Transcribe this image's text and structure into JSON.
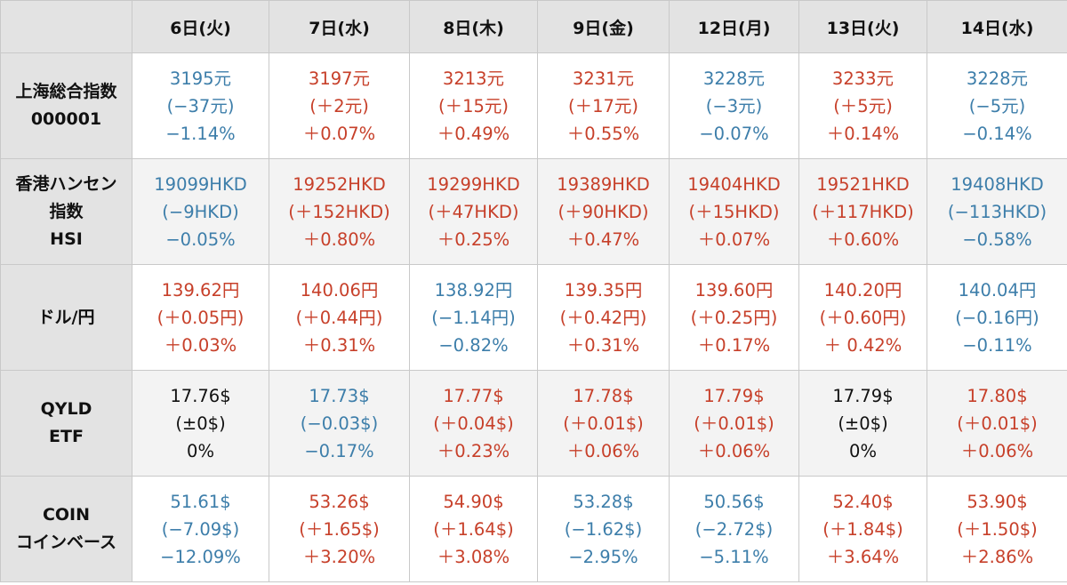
{
  "colors": {
    "up": "#c7402a",
    "down": "#3d7eaa",
    "flat": "#111111",
    "header_bg": "#e3e3e3"
  },
  "headers": [
    "6日(火)",
    "7日(水)",
    "8日(木)",
    "9日(金)",
    "12日(月)",
    "13日(火)",
    "14日(水)"
  ],
  "rows": [
    {
      "label": [
        "上海総合指数",
        "000001"
      ],
      "cells": [
        {
          "dir": "down",
          "lines": [
            "3195元",
            "(−37元)",
            "−1.14%"
          ]
        },
        {
          "dir": "up",
          "lines": [
            "3197元",
            "(＋2元)",
            "＋0.07%"
          ]
        },
        {
          "dir": "up",
          "lines": [
            "3213元",
            "(＋15元)",
            "＋0.49%"
          ]
        },
        {
          "dir": "up",
          "lines": [
            "3231元",
            "(＋17元)",
            "＋0.55%"
          ]
        },
        {
          "dir": "down",
          "lines": [
            "3228元",
            "(−3元)",
            "−0.07%"
          ]
        },
        {
          "dir": "up",
          "lines": [
            "3233元",
            "(＋5元)",
            "＋0.14%"
          ]
        },
        {
          "dir": "down",
          "lines": [
            "3228元",
            "(−5元)",
            "−0.14%"
          ]
        }
      ]
    },
    {
      "label": [
        "香港ハンセン",
        "指数",
        "HSI"
      ],
      "cells": [
        {
          "dir": "down",
          "lines": [
            "19099HKD",
            "(−9HKD)",
            "−0.05%"
          ]
        },
        {
          "dir": "up",
          "lines": [
            "19252HKD",
            "(＋152HKD)",
            "＋0.80%"
          ]
        },
        {
          "dir": "up",
          "lines": [
            "19299HKD",
            "(＋47HKD)",
            "＋0.25%"
          ]
        },
        {
          "dir": "up",
          "lines": [
            "19389HKD",
            "(＋90HKD)",
            "＋0.47%"
          ]
        },
        {
          "dir": "up",
          "lines": [
            "19404HKD",
            "(＋15HKD)",
            "＋0.07%"
          ]
        },
        {
          "dir": "up",
          "lines": [
            "19521HKD",
            "(＋117HKD)",
            "＋0.60%"
          ]
        },
        {
          "dir": "down",
          "lines": [
            "19408HKD",
            "(−113HKD)",
            "−0.58%"
          ]
        }
      ]
    },
    {
      "label": [
        "ドル/円"
      ],
      "cells": [
        {
          "dir": "up",
          "lines": [
            "139.62円",
            "(＋0.05円)",
            "＋0.03%"
          ]
        },
        {
          "dir": "up",
          "lines": [
            "140.06円",
            "(＋0.44円)",
            "＋0.31%"
          ]
        },
        {
          "dir": "down",
          "lines": [
            "138.92円",
            "(−1.14円)",
            "−0.82%"
          ]
        },
        {
          "dir": "up",
          "lines": [
            "139.35円",
            "(＋0.42円)",
            "＋0.31%"
          ]
        },
        {
          "dir": "up",
          "lines": [
            "139.60円",
            "(＋0.25円)",
            "＋0.17%"
          ]
        },
        {
          "dir": "up",
          "lines": [
            "140.20円",
            "(＋0.60円)",
            "＋ 0.42%"
          ]
        },
        {
          "dir": "down",
          "lines": [
            "140.04円",
            "(−0.16円)",
            "−0.11%"
          ]
        }
      ]
    },
    {
      "label": [
        "QYLD",
        "ETF"
      ],
      "cells": [
        {
          "dir": "flat",
          "lines": [
            "17.76$",
            "(±0$)",
            "0%"
          ]
        },
        {
          "dir": "down",
          "lines": [
            "17.73$",
            "(−0.03$)",
            "−0.17%"
          ]
        },
        {
          "dir": "up",
          "lines": [
            "17.77$",
            "(＋0.04$)",
            "＋0.23%"
          ]
        },
        {
          "dir": "up",
          "lines": [
            "17.78$",
            "(＋0.01$)",
            "＋0.06%"
          ]
        },
        {
          "dir": "up",
          "lines": [
            "17.79$",
            "(＋0.01$)",
            "＋0.06%"
          ]
        },
        {
          "dir": "flat",
          "lines": [
            "17.79$",
            "(±0$)",
            "0%"
          ]
        },
        {
          "dir": "up",
          "lines": [
            "17.80$",
            "(＋0.01$)",
            "＋0.06%"
          ]
        }
      ]
    },
    {
      "label": [
        "COIN",
        "コインベース"
      ],
      "cells": [
        {
          "dir": "down",
          "lines": [
            "51.61$",
            "(−7.09$)",
            "−12.09%"
          ]
        },
        {
          "dir": "up",
          "lines": [
            "53.26$",
            "(＋1.65$)",
            "＋3.20%"
          ]
        },
        {
          "dir": "up",
          "lines": [
            "54.90$",
            "(＋1.64$)",
            "＋3.08%"
          ]
        },
        {
          "dir": "down",
          "lines": [
            "53.28$",
            "(−1.62$)",
            "−2.95%"
          ]
        },
        {
          "dir": "down",
          "lines": [
            "50.56$",
            "(−2.72$)",
            "−5.11%"
          ]
        },
        {
          "dir": "up",
          "lines": [
            "52.40$",
            "(＋1.84$)",
            "＋3.64%"
          ]
        },
        {
          "dir": "up",
          "lines": [
            "53.90$",
            "(＋1.50$)",
            "＋2.86%"
          ]
        }
      ]
    }
  ]
}
